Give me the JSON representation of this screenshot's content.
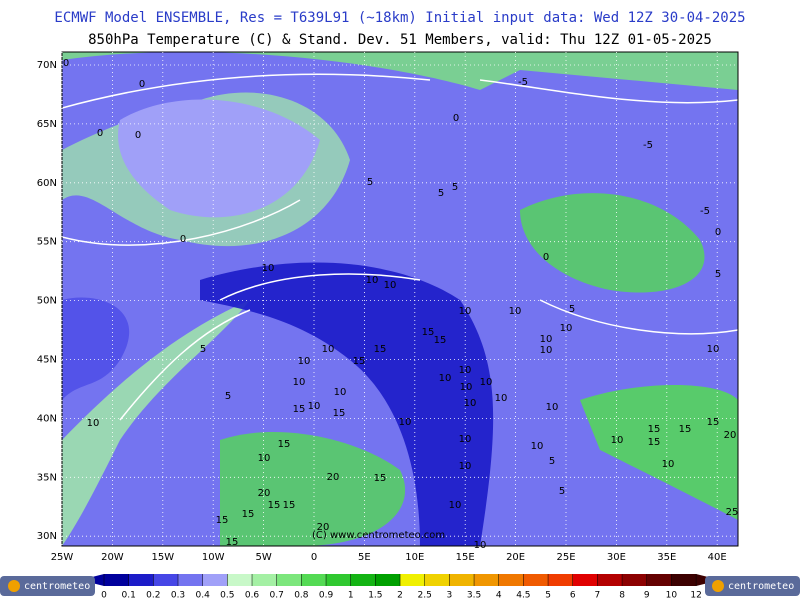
{
  "header": {
    "title": "ECMWF Model ENSEMBLE, Res = T639L91 (~18km)  Initial input data: Wed 12Z 30-04-2025",
    "subtitle": "850hPa Temperature (C) & Stand. Dev.   51 Members, valid: Thu 12Z 01-05-2025"
  },
  "map": {
    "lat_labels": [
      "70N",
      "65N",
      "60N",
      "55N",
      "50N",
      "45N",
      "40N",
      "35N",
      "30N"
    ],
    "lon_labels": [
      "25W",
      "20W",
      "15W",
      "10W",
      "5W",
      "0",
      "5E",
      "10E",
      "15E",
      "20E",
      "25E",
      "30E",
      "35E",
      "40E"
    ],
    "contour_labels": [
      0,
      0,
      0,
      0,
      0,
      -5,
      0,
      5,
      5,
      5,
      -5,
      -5,
      0,
      0,
      5,
      10,
      10,
      10,
      5,
      10,
      10,
      10,
      15,
      15,
      10,
      10,
      5,
      10,
      10,
      15,
      15,
      10,
      10,
      10,
      10,
      10,
      10,
      5,
      10,
      10,
      10,
      15,
      10,
      15,
      10,
      10,
      10,
      15,
      10,
      15,
      15,
      15,
      15,
      20,
      10,
      10,
      10,
      5,
      10,
      10,
      20,
      15,
      20,
      5,
      15,
      15,
      15,
      15,
      10,
      20,
      15,
      25,
      10
    ],
    "watermark": "(C) www.centrometeo.com"
  },
  "colorbar": {
    "ticks": [
      0,
      0.1,
      0.2,
      0.3,
      0.4,
      0.5,
      0.6,
      0.7,
      0.8,
      0.9,
      1,
      1.5,
      2,
      2.5,
      3,
      3.5,
      4,
      4.5,
      5,
      6,
      7,
      8,
      9,
      10,
      12
    ],
    "colors": [
      "#00009c",
      "#1c1cc8",
      "#4646e6",
      "#7474f0",
      "#a0a0f8",
      "#c8f8c8",
      "#a4f0a4",
      "#7ce67c",
      "#54da54",
      "#30c830",
      "#14b414",
      "#00a000",
      "#f0f000",
      "#f0d200",
      "#f0b400",
      "#f09600",
      "#f07800",
      "#f05a00",
      "#f03c00",
      "#e00000",
      "#b40000",
      "#8c0000",
      "#640000",
      "#3c0000"
    ]
  },
  "logos": {
    "left": "centrometeo",
    "right": "centrometeo"
  }
}
